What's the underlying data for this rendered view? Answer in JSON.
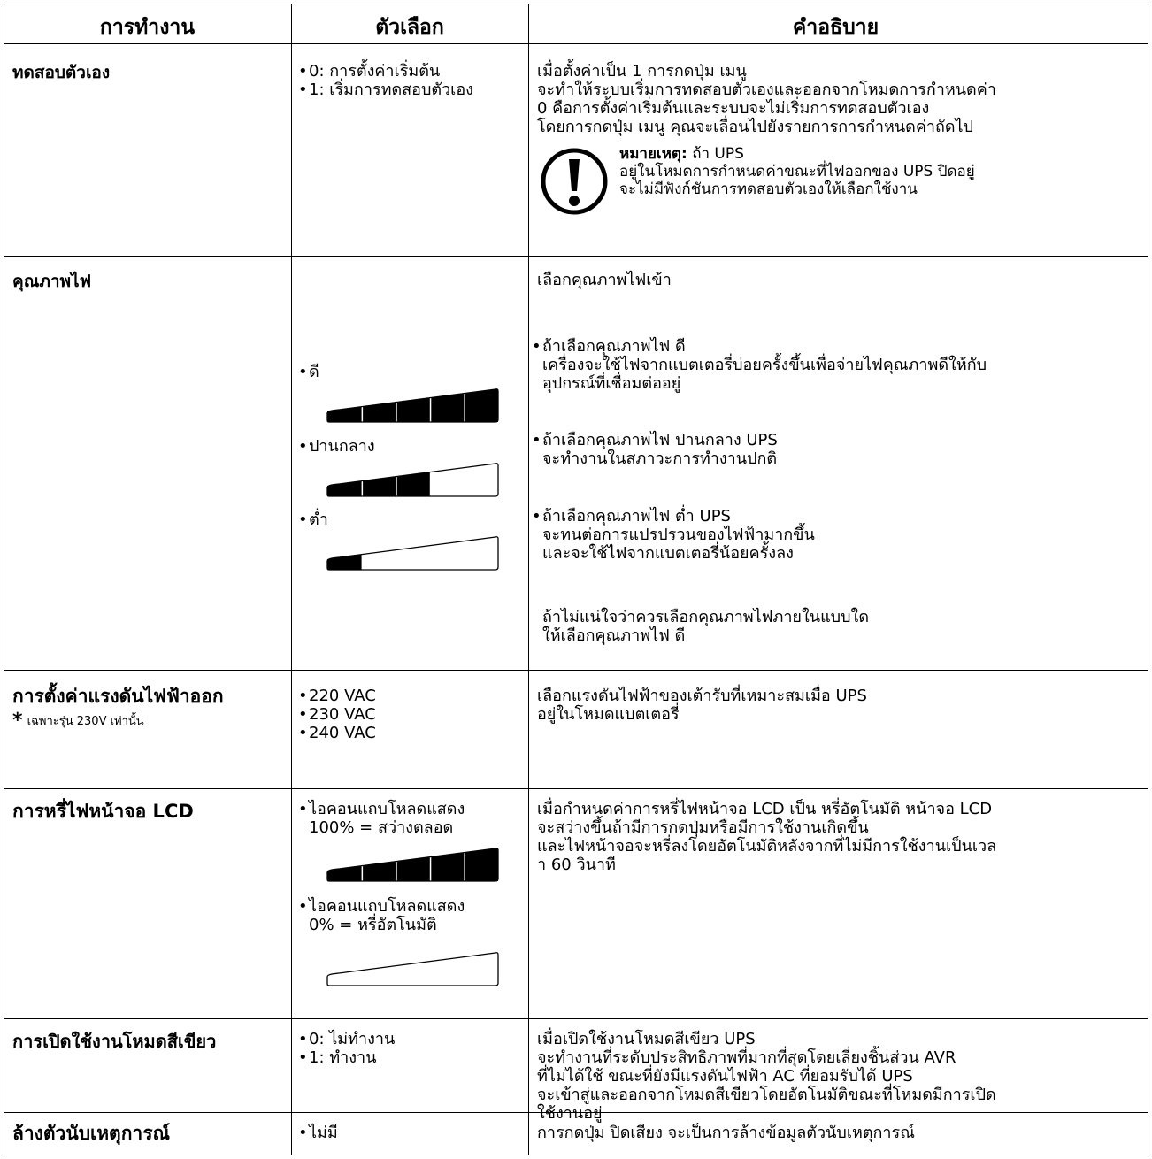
{
  "header": {
    "col1": "การทำงาน",
    "col2": "ตัวเลือก",
    "col3": "คำอธิบาย"
  },
  "rows": {
    "selftest": {
      "operation": "ทดสอบตัวเอง",
      "options": [
        "0: การตั้งค่าเริ่มต้น",
        "1: เริ่มการทดสอบตัวเอง"
      ],
      "desc": [
        "เมื่อตั้งค่าเป็น 1 การกดปุ่ม เมนู",
        "จะทำให้ระบบเริ่มการทดสอบตัวเองและออกจากโหมดการกำหนดค่า",
        "0 คือการตั้งค่าเริ่มต้นและระบบจะไม่เริ่มการทดสอบตัวเอง",
        "โดยการกดปุ่ม เมนู คุณจะเลื่อนไปยังรายการการกำหนดค่าถัดไป"
      ],
      "note_label": "หมายเหตุ:",
      "note_lines": [
        "ถ้า UPS",
        "อยู่ในโหมดการกำหนดค่าขณะที่ไฟออกของ UPS ปิดอยู่",
        "จะไม่มีฟังก์ชันการทดสอบตัวเองให้เลือกใช้งาน"
      ],
      "note_icon": "exclamation-circle-icon"
    },
    "power_quality": {
      "operation": "คุณภาพไฟ",
      "options": [
        {
          "label": "ดี",
          "level": 5
        },
        {
          "label": "ปานกลาง",
          "level": 3
        },
        {
          "label": "ต่ำ",
          "level": 1
        }
      ],
      "bar_segments": 5,
      "intro": "เลือกคุณภาพไฟเข้า",
      "items": [
        [
          "ถ้าเลือกคุณภาพไฟ ดี",
          "เครื่องจะใช้ไฟจากแบตเตอรี่บ่อยครั้งขึ้นเพื่อจ่ายไฟคุณภาพดีให้กับ",
          "อุปกรณ์ที่เชื่อมต่ออยู่"
        ],
        [
          "ถ้าเลือกคุณภาพไฟ ปานกลาง UPS",
          "จะทำงานในสภาวะการทำงานปกติ"
        ],
        [
          "ถ้าเลือกคุณภาพไฟ ต่ำ UPS",
          "จะทนต่อการแปรปรวนของไฟฟ้ามากขึ้น",
          "และจะใช้ไฟจากแบตเตอรี่น้อยครั้งลง"
        ]
      ],
      "footer": [
        "ถ้าไม่แน่ใจว่าควรเลือกคุณภาพไฟภายในแบบใด",
        "ให้เลือกคุณภาพไฟ ดี"
      ]
    },
    "output_voltage": {
      "operation": "การตั้งค่าแรงดันไฟฟ้าออก",
      "note_star": "*",
      "note": "เฉพาะรุ่น 230V เท่านั้น",
      "options": [
        "220 VAC",
        "230 VAC",
        "240 VAC"
      ],
      "desc": [
        "เลือกแรงดันไฟฟ้าของเต้ารับที่เหมาะสมเมื่อ UPS",
        "อยู่ในโหมดแบตเตอรี่"
      ]
    },
    "lcd": {
      "operation": "การหรี่ไฟหน้าจอ LCD",
      "options": [
        {
          "lines": [
            "ไอคอนแถบโหลดแสดง",
            "100% = สว่างตลอด"
          ],
          "level": 5
        },
        {
          "lines": [
            "ไอคอนแถบโหลดแสดง",
            "0% = หรี่อัตโนมัติ"
          ],
          "level": 0
        }
      ],
      "desc": [
        "เมื่อกำหนดค่าการหรี่ไฟหน้าจอ LCD เป็น หรี่อัตโนมัติ หน้าจอ LCD",
        "จะสว่างขึ้นถ้ามีการกดปุ่มหรือมีการใช้งานเกิดขึ้น",
        "และไฟหน้าจอจะหรี่ลงโดยอัตโนมัติหลังจากที่ไม่มีการใช้งานเป็นเวล",
        "า 60 วินาที"
      ]
    },
    "green": {
      "operation": "การเปิดใช้งานโหมดสีเขียว",
      "options": [
        "0: ไม่ทำงาน",
        "1: ทำงาน"
      ],
      "desc": [
        "เมื่อเปิดใช้งานโหมดสีเขียว UPS",
        "จะทำงานที่ระดับประสิทธิภาพที่มากที่สุดโดยเลี่ยงชิ้นส่วน AVR",
        "ที่ไม่ได้ใช้ ขณะที่ยังมีแรงดันไฟฟ้า AC ที่ยอมรับได้ UPS",
        "จะเข้าสู่และออกจากโหมดสีเขียวโดยอัตโนมัติขณะที่โหมดมีการเปิด",
        "ใช้งานอยู่"
      ]
    },
    "event": {
      "operation": "ล้างตัวนับเหตุการณ์",
      "options": [
        "ไม่มี"
      ],
      "desc": [
        "การกดปุ่ม ปิดเสียง จะเป็นการล้างข้อมูลตัวนับเหตุการณ์"
      ]
    }
  }
}
